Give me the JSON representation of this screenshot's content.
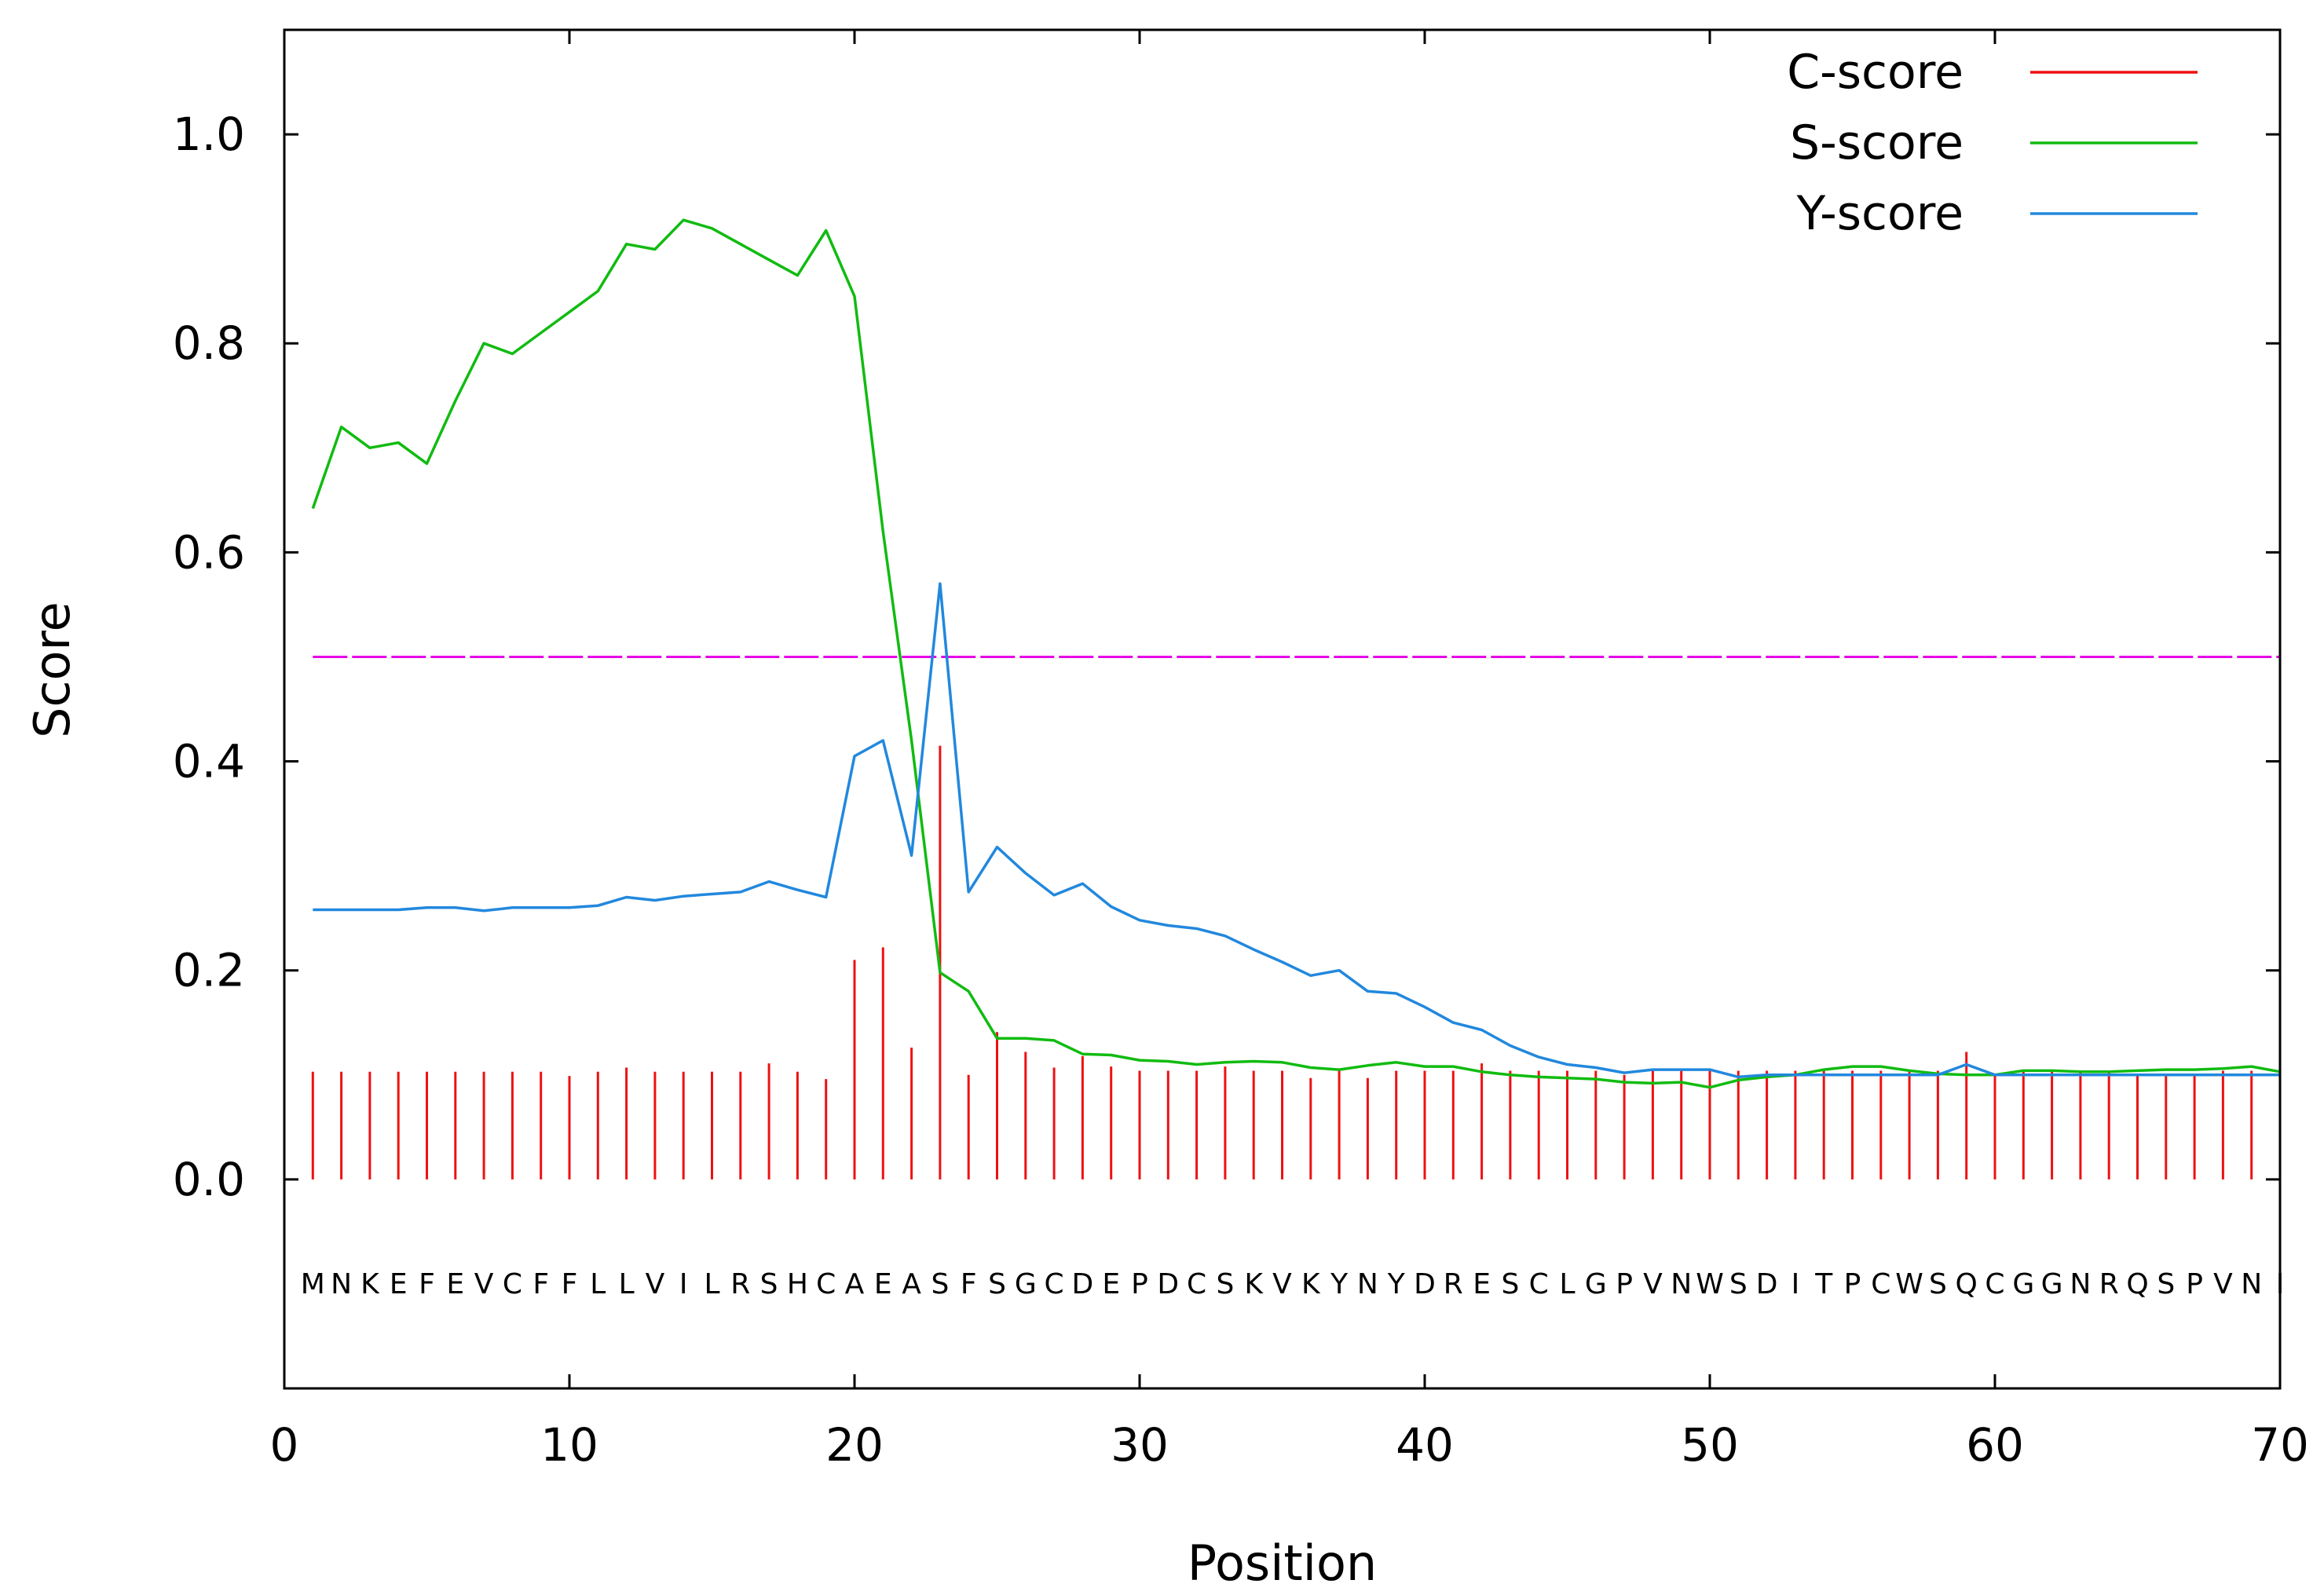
{
  "chart_data": {
    "type": "line",
    "title": "",
    "xlabel": "Position",
    "ylabel": "Score",
    "xlim": [
      0,
      70
    ],
    "ylim": [
      -0.2,
      1.1
    ],
    "x_ticks": [
      0,
      10,
      20,
      30,
      40,
      50,
      60,
      70
    ],
    "y_ticks": [
      0.0,
      0.2,
      0.4,
      0.6,
      0.8,
      1.0
    ],
    "x_tick_labels": [
      "0",
      "10",
      "20",
      "30",
      "40",
      "50",
      "60",
      "70"
    ],
    "y_tick_labels": [
      "0.0",
      "0.2",
      "0.4",
      "0.6",
      "0.8",
      "1.0"
    ],
    "grid": false,
    "legend": {
      "position": "top-right"
    },
    "sequence": [
      "M",
      "N",
      "K",
      "E",
      "F",
      "E",
      "V",
      "C",
      "F",
      "F",
      "L",
      "L",
      "V",
      "I",
      "L",
      "R",
      "S",
      "H",
      "C",
      "A",
      "E",
      "A",
      "S",
      "F",
      "S",
      "G",
      "C",
      "D",
      "E",
      "P",
      "D",
      "C",
      "S",
      "K",
      "V",
      "K",
      "Y",
      "N",
      "Y",
      "D",
      "R",
      "E",
      "S",
      "C",
      "L",
      "G",
      "P",
      "V",
      "N",
      "W",
      "S",
      "D",
      "I",
      "T",
      "P",
      "C",
      "W",
      "S",
      "Q",
      "C",
      "G",
      "G",
      "N",
      "R",
      "Q",
      "S",
      "P",
      "V",
      "N",
      "I"
    ],
    "x": [
      1,
      2,
      3,
      4,
      5,
      6,
      7,
      8,
      9,
      10,
      11,
      12,
      13,
      14,
      15,
      16,
      17,
      18,
      19,
      20,
      21,
      22,
      23,
      24,
      25,
      26,
      27,
      28,
      29,
      30,
      31,
      32,
      33,
      34,
      35,
      36,
      37,
      38,
      39,
      40,
      41,
      42,
      43,
      44,
      45,
      46,
      47,
      48,
      49,
      50,
      51,
      52,
      53,
      54,
      55,
      56,
      57,
      58,
      59,
      60,
      61,
      62,
      63,
      64,
      65,
      66,
      67,
      68,
      69,
      70
    ],
    "threshold": {
      "value": 0.5,
      "color": "#e600e6"
    },
    "series": [
      {
        "name": "C-score",
        "style": "impulses",
        "color": "#ee1111",
        "values": [
          0.103,
          0.103,
          0.103,
          0.103,
          0.103,
          0.103,
          0.103,
          0.103,
          0.103,
          0.099,
          0.103,
          0.107,
          0.103,
          0.103,
          0.103,
          0.103,
          0.111,
          0.103,
          0.096,
          0.21,
          0.222,
          0.126,
          0.415,
          0.1,
          0.141,
          0.122,
          0.107,
          0.118,
          0.108,
          0.104,
          0.104,
          0.104,
          0.108,
          0.104,
          0.104,
          0.097,
          0.104,
          0.097,
          0.104,
          0.104,
          0.104,
          0.111,
          0.104,
          0.104,
          0.104,
          0.104,
          0.1,
          0.104,
          0.104,
          0.104,
          0.104,
          0.104,
          0.104,
          0.104,
          0.104,
          0.104,
          0.104,
          0.104,
          0.122,
          0.1,
          0.104,
          0.104,
          0.104,
          0.104,
          0.1,
          0.1,
          0.1,
          0.104,
          0.104,
          0.104
        ]
      },
      {
        "name": "S-score",
        "style": "line",
        "color": "#11bb11",
        "values": [
          0.642,
          0.72,
          0.7,
          0.705,
          0.685,
          0.745,
          0.8,
          0.79,
          0.81,
          0.83,
          0.85,
          0.895,
          0.89,
          0.918,
          0.91,
          0.895,
          0.88,
          0.865,
          0.908,
          0.845,
          0.62,
          0.42,
          0.198,
          0.18,
          0.135,
          0.135,
          0.133,
          0.12,
          0.119,
          0.114,
          0.113,
          0.11,
          0.112,
          0.113,
          0.112,
          0.107,
          0.105,
          0.109,
          0.112,
          0.108,
          0.108,
          0.103,
          0.1,
          0.098,
          0.097,
          0.096,
          0.093,
          0.092,
          0.093,
          0.088,
          0.095,
          0.098,
          0.1,
          0.105,
          0.108,
          0.108,
          0.104,
          0.101,
          0.1,
          0.1,
          0.104,
          0.104,
          0.103,
          0.103,
          0.104,
          0.105,
          0.105,
          0.106,
          0.108,
          0.103
        ]
      },
      {
        "name": "Y-score",
        "style": "line",
        "color": "#2288dd",
        "values": [
          0.258,
          0.258,
          0.258,
          0.258,
          0.26,
          0.26,
          0.257,
          0.26,
          0.26,
          0.26,
          0.262,
          0.27,
          0.267,
          0.271,
          0.273,
          0.275,
          0.285,
          0.277,
          0.27,
          0.405,
          0.42,
          0.31,
          0.57,
          0.275,
          0.318,
          0.293,
          0.272,
          0.283,
          0.261,
          0.248,
          0.243,
          0.24,
          0.233,
          0.22,
          0.208,
          0.195,
          0.2,
          0.18,
          0.178,
          0.165,
          0.15,
          0.143,
          0.128,
          0.117,
          0.11,
          0.107,
          0.102,
          0.105,
          0.105,
          0.105,
          0.098,
          0.1,
          0.1,
          0.1,
          0.1,
          0.1,
          0.1,
          0.1,
          0.11,
          0.1,
          0.1,
          0.1,
          0.1,
          0.1,
          0.1,
          0.1,
          0.1,
          0.1,
          0.1,
          0.1
        ]
      }
    ]
  }
}
